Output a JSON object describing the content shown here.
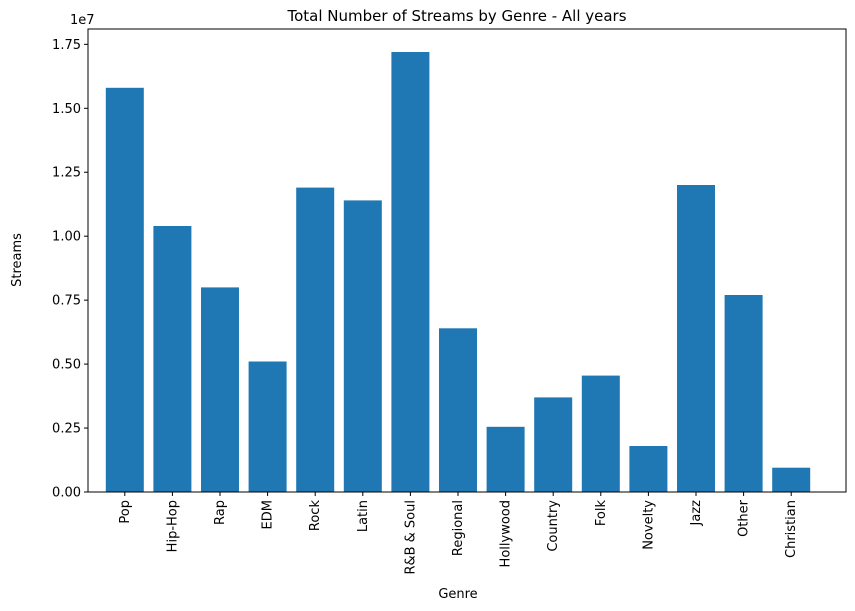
{
  "chart_data": {
    "type": "bar",
    "title": "Total Number of Streams by Genre - All years",
    "xlabel": "Genre",
    "ylabel": "Streams",
    "y_offset_label": "1e7",
    "ylim": [
      0,
      1.81
    ],
    "yticks": [
      0.0,
      0.25,
      0.5,
      0.75,
      1.0,
      1.25,
      1.5,
      1.75
    ],
    "ytick_labels": [
      "0.00",
      "0.25",
      "0.50",
      "0.75",
      "1.00",
      "1.25",
      "1.50",
      "1.75"
    ],
    "categories": [
      "Pop",
      "Hip-Hop",
      "Rap",
      "EDM",
      "Rock",
      "Latin",
      "R&B & Soul",
      "Regional",
      "Hollywood",
      "Country",
      "Folk",
      "Novelty",
      "Jazz",
      "Other",
      "Christian"
    ],
    "values": [
      1.58,
      1.04,
      0.8,
      0.51,
      1.19,
      1.14,
      1.72,
      0.64,
      0.255,
      0.37,
      0.455,
      0.18,
      1.2,
      0.77,
      0.095
    ],
    "bar_color": "#1f77b4",
    "grid": false,
    "legend": "none"
  }
}
